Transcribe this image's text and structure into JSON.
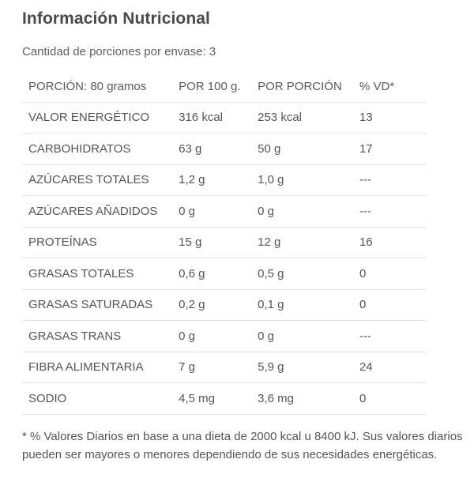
{
  "title": "Información Nutricional",
  "servings_text": "Cantidad de porciones por envase: 3",
  "table": {
    "headers": [
      "PORCIÓN: 80 gramos",
      "POR 100 g.",
      "POR PORCIÓN",
      "% VD*"
    ],
    "rows": [
      [
        "VALOR ENERGÉTICO",
        "316 kcal",
        "253 kcal",
        "13"
      ],
      [
        "CARBOHIDRATOS",
        "63 g",
        "50 g",
        "17"
      ],
      [
        "AZÚCARES TOTALES",
        "1,2 g",
        "1,0 g",
        "---"
      ],
      [
        "AZÚCARES AÑADIDOS",
        "0 g",
        "0 g",
        "---"
      ],
      [
        "PROTEÍNAS",
        "15 g",
        "12 g",
        "16"
      ],
      [
        "GRASAS TOTALES",
        "0,6 g",
        "0,5 g",
        "0"
      ],
      [
        "GRASAS SATURADAS",
        "0,2 g",
        "0,1 g",
        "0"
      ],
      [
        "GRASAS TRANS",
        "0 g",
        "0 g",
        "---"
      ],
      [
        "FIBRA ALIMENTARIA",
        "7 g",
        "5,9 g",
        "24"
      ],
      [
        "SODIO",
        "4,5 mg",
        "3,6 mg",
        "0"
      ]
    ]
  },
  "footnote": "* % Valores Diarios en base a una dieta de 2000 kcal u 8400 kJ. Sus valores diarios pueden ser mayores o menores dependiendo de sus necesidades energéticas."
}
